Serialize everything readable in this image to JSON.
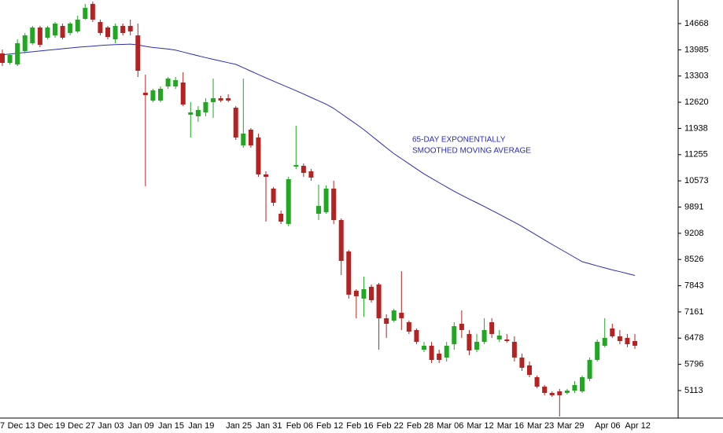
{
  "chart_data": {
    "type": "candlestick",
    "annotation": [
      "65-DAY EXPONENTIALLY",
      "SMOOTHED MOVING AVERAGE"
    ],
    "categories": [
      "7",
      "Dec 13",
      null,
      null,
      null,
      "Dec 19",
      null,
      null,
      null,
      "Dec 27",
      null,
      null,
      null,
      "Jan 03",
      null,
      null,
      null,
      "Jan 09",
      null,
      null,
      null,
      "Jan 15",
      null,
      null,
      null,
      "Jan 19",
      null,
      null,
      null,
      null,
      "Jan 25",
      null,
      null,
      null,
      "Jan 31",
      null,
      null,
      null,
      "Feb 06",
      null,
      null,
      null,
      "Feb 12",
      null,
      null,
      null,
      "Feb 16",
      null,
      null,
      null,
      "Feb 22",
      null,
      null,
      null,
      "Feb 28",
      null,
      null,
      null,
      "Mar 06",
      null,
      null,
      null,
      "Mar 12",
      null,
      null,
      null,
      "Mar 16",
      null,
      null,
      null,
      "Mar 23",
      null,
      null,
      null,
      "Mar 29",
      null,
      null,
      null,
      null,
      "Apr 06",
      null,
      null,
      null,
      "Apr 12",
      null
    ],
    "open": [
      13891,
      13645,
      13604,
      13952,
      14157,
      14566,
      14300,
      14361,
      14607,
      14423,
      14464,
      14791,
      15180,
      14709,
      14566,
      14259,
      14607,
      14607,
      14361,
      12868,
      12664,
      12664,
      13031,
      13031,
      13134,
      12295,
      12254,
      12356,
      12623,
      12725,
      12725,
      12479,
      11497,
      11906,
      11702,
      10740,
      10372,
      9717,
      9451,
      10944,
      10965,
      10822,
      9717,
      9758,
      10372,
      9553,
      8735,
      7712,
      7507,
      7814,
      7875,
      6996,
      6934,
      7139,
      6893,
      6689,
      6177,
      6280,
      6075,
      5973,
      6320,
      6852,
      6586,
      6177,
      6382,
      6893,
      6443,
      6443,
      6382,
      5973,
      5768,
      5461,
      5216,
      5052,
      5093,
      5052,
      5113,
      5093,
      5420,
      5911,
      6280,
      6730,
      6525,
      6484,
      6402
    ],
    "high": [
      13993,
      13891,
      14259,
      14423,
      14607,
      14607,
      14607,
      14709,
      14668,
      14709,
      14873,
      15180,
      15241,
      14771,
      14607,
      14668,
      14668,
      14771,
      14668,
      13338,
      12970,
      13031,
      13277,
      13277,
      13400,
      12623,
      12520,
      12725,
      13236,
      12786,
      12827,
      12520,
      13236,
      11947,
      11804,
      10822,
      10413,
      9799,
      10679,
      12009,
      11026,
      10883,
      10474,
      10454,
      10576,
      9594,
      8776,
      7753,
      8080,
      7875,
      7916,
      7098,
      7241,
      8223,
      6934,
      6730,
      6382,
      6382,
      6177,
      6382,
      6893,
      7200,
      6689,
      6586,
      6996,
      6996,
      6689,
      6586,
      6525,
      6075,
      5870,
      5502,
      5257,
      5093,
      5154,
      5154,
      5359,
      5502,
      5973,
      6443,
      6996,
      6852,
      6689,
      6586,
      6586
    ],
    "low": [
      13563,
      13604,
      13563,
      13891,
      14116,
      14054,
      14259,
      14300,
      14259,
      14361,
      14423,
      14771,
      14709,
      14361,
      14259,
      14157,
      14361,
      14361,
      13277,
      10433,
      12623,
      12623,
      12970,
      12970,
      12520,
      11702,
      12111,
      12254,
      12213,
      12623,
      12623,
      11640,
      11436,
      11436,
      10679,
      9512,
      9921,
      9451,
      9390,
      10883,
      10679,
      10576,
      9553,
      9717,
      9451,
      8121,
      7507,
      6996,
      7037,
      7405,
      6177,
      6484,
      6893,
      6689,
      6586,
      6320,
      6116,
      5829,
      5829,
      5870,
      6177,
      6484,
      6034,
      6116,
      6320,
      6484,
      6382,
      6361,
      5870,
      5625,
      5461,
      5175,
      4991,
      4950,
      4438,
      5011,
      5052,
      5052,
      5359,
      5870,
      6239,
      6484,
      6320,
      6239,
      6198
    ],
    "close": [
      13645,
      13850,
      14157,
      14361,
      14566,
      14116,
      14566,
      14668,
      14300,
      14668,
      14771,
      15077,
      14771,
      14423,
      14320,
      14607,
      14423,
      14464,
      13441,
      12806,
      12929,
      12970,
      13236,
      13195,
      12561,
      12356,
      12418,
      12623,
      12725,
      12664,
      12664,
      11702,
      11804,
      11497,
      10740,
      10679,
      10003,
      9512,
      10617,
      10985,
      10781,
      10658,
      9921,
      10372,
      9553,
      8489,
      7610,
      7569,
      7753,
      7466,
      6996,
      6852,
      7200,
      6996,
      6648,
      6382,
      6280,
      5911,
      5911,
      6280,
      6791,
      6689,
      6157,
      6382,
      6689,
      6586,
      6546,
      6402,
      5973,
      5707,
      5523,
      5216,
      5052,
      4991,
      4991,
      5113,
      5257,
      5461,
      5911,
      6382,
      6484,
      6525,
      6402,
      6320,
      6280
    ],
    "up_color": "#22a722",
    "down_color": "#b52222",
    "overlay": {
      "color": "#2b2bb8",
      "values": [
        13856,
        13876,
        13895,
        13915,
        13934,
        13954,
        13975,
        13993,
        14014,
        14032,
        14052,
        14067,
        14081,
        14097,
        14112,
        14120,
        14126,
        14134,
        14114,
        14075,
        14046,
        14026,
        14005,
        13977,
        13928,
        13878,
        13829,
        13782,
        13737,
        13694,
        13649,
        13606,
        13518,
        13430,
        13342,
        13254,
        13171,
        13087,
        13005,
        12921,
        12833,
        12745,
        12657,
        12569,
        12461,
        12324,
        12186,
        12049,
        11908,
        11751,
        11593,
        11436,
        11282,
        11149,
        11018,
        10885,
        10754,
        10640,
        10525,
        10415,
        10302,
        10200,
        10100,
        10003,
        9905,
        9805,
        9703,
        9598,
        9496,
        9388,
        9271,
        9152,
        9036,
        8919,
        8806,
        8694,
        8581,
        8469,
        8416,
        8360,
        8307,
        8254,
        8209,
        8160,
        8111
      ]
    },
    "ylim": [
      4397,
      15282
    ],
    "yticks": [
      14668,
      13985,
      13303,
      12620,
      11938,
      11255,
      10573,
      9891,
      9208,
      8526,
      7843,
      7161,
      6478,
      5796,
      5113
    ]
  }
}
